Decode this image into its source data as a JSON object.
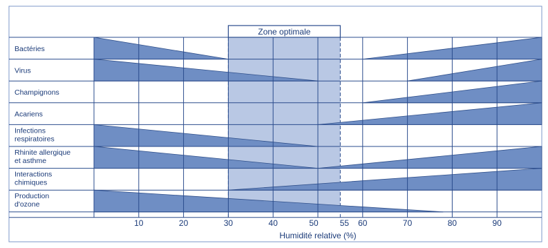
{
  "chart_data": {
    "type": "area",
    "xlabel": "Humidité relative (%)",
    "x_ticks": [
      10,
      20,
      30,
      40,
      50,
      55,
      60,
      70,
      80,
      90
    ],
    "xlim": [
      0,
      100
    ],
    "optimal_zone": {
      "label": "Zone optimale",
      "from": 30,
      "to": 55
    },
    "rows": [
      {
        "label_lines": [
          "Bactéries"
        ],
        "segments": [
          {
            "from": 0,
            "to": 30,
            "falling": true
          },
          {
            "from": 60,
            "to": 100,
            "falling": false
          }
        ]
      },
      {
        "label_lines": [
          "Virus"
        ],
        "segments": [
          {
            "from": 0,
            "to": 50,
            "falling": true
          },
          {
            "from": 70,
            "to": 100,
            "falling": false
          }
        ]
      },
      {
        "label_lines": [
          "Champignons"
        ],
        "segments": [
          {
            "from": 60,
            "to": 100,
            "falling": false
          }
        ]
      },
      {
        "label_lines": [
          "Acariens"
        ],
        "segments": [
          {
            "from": 50,
            "to": 100,
            "falling": false
          }
        ]
      },
      {
        "label_lines": [
          "Infections",
          "respiratoires"
        ],
        "segments": [
          {
            "from": 0,
            "to": 50,
            "falling": true
          }
        ]
      },
      {
        "label_lines": [
          "Rhinite allergique",
          "et asthme"
        ],
        "segments": [
          {
            "from": 0,
            "to": 50,
            "falling": true
          },
          {
            "from": 50,
            "to": 100,
            "falling": false
          }
        ]
      },
      {
        "label_lines": [
          "Interactions",
          "chimiques"
        ],
        "segments": [
          {
            "from": 30,
            "to": 100,
            "falling": false
          }
        ]
      },
      {
        "label_lines": [
          "Production",
          "d'ozone"
        ],
        "segments": [
          {
            "from": 0,
            "to": 78,
            "falling": true
          }
        ]
      }
    ],
    "grid": true,
    "colors": {
      "area": "#6f8ec4",
      "area_stroke": "#2f4f8a",
      "zone": "#b9c8e4",
      "grid": "#2a4b8c",
      "frame": "#7d97c9",
      "text": "#1a3a78",
      "background": "#ffffff"
    }
  }
}
